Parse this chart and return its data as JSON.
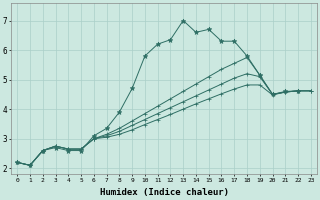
{
  "xlabel": "Humidex (Indice chaleur)",
  "bg_color": "#cce8e0",
  "grid_color": "#aacfc8",
  "line_color": "#2e6e64",
  "xlim": [
    -0.5,
    23.5
  ],
  "ylim": [
    1.8,
    7.6
  ],
  "yticks": [
    2,
    3,
    4,
    5,
    6,
    7
  ],
  "xticks": [
    0,
    1,
    2,
    3,
    4,
    5,
    6,
    7,
    8,
    9,
    10,
    11,
    12,
    13,
    14,
    15,
    16,
    17,
    18,
    19,
    20,
    21,
    22,
    23
  ],
  "series": [
    {
      "marker": "*",
      "x": [
        0,
        1,
        2,
        3,
        4,
        5,
        6,
        7,
        8,
        9,
        10,
        11,
        12,
        13,
        14,
        15,
        16,
        17,
        18,
        19,
        20,
        21,
        22
      ],
      "y": [
        2.2,
        2.1,
        2.6,
        2.7,
        2.6,
        2.6,
        3.1,
        3.35,
        3.9,
        4.7,
        5.8,
        6.2,
        6.35,
        7.0,
        6.6,
        6.7,
        6.3,
        6.3,
        5.8,
        5.15,
        4.5,
        4.6,
        4.62
      ]
    },
    {
      "marker": "+",
      "x": [
        0,
        1,
        2,
        3,
        4,
        5,
        6,
        7,
        8,
        9,
        10,
        11,
        12,
        13,
        14,
        15,
        16,
        17,
        18,
        19,
        20,
        21,
        22,
        23
      ],
      "y": [
        2.2,
        2.1,
        2.6,
        2.75,
        2.65,
        2.65,
        3.0,
        3.15,
        3.35,
        3.6,
        3.85,
        4.1,
        4.35,
        4.6,
        4.85,
        5.1,
        5.35,
        5.55,
        5.75,
        5.15,
        4.5,
        4.58,
        4.62,
        4.62
      ]
    },
    {
      "marker": "+",
      "x": [
        0,
        1,
        2,
        3,
        4,
        5,
        6,
        7,
        8,
        9,
        10,
        11,
        12,
        13,
        14,
        15,
        16,
        17,
        18,
        19,
        20,
        21,
        22,
        23
      ],
      "y": [
        2.2,
        2.1,
        2.6,
        2.75,
        2.65,
        2.65,
        3.0,
        3.1,
        3.25,
        3.45,
        3.65,
        3.85,
        4.05,
        4.25,
        4.45,
        4.65,
        4.85,
        5.05,
        5.2,
        5.1,
        4.5,
        4.58,
        4.62,
        4.62
      ]
    },
    {
      "marker": "+",
      "x": [
        0,
        1,
        2,
        3,
        4,
        5,
        6,
        7,
        8,
        9,
        10,
        11,
        12,
        13,
        14,
        15,
        16,
        17,
        18,
        19,
        20,
        21,
        22,
        23
      ],
      "y": [
        2.2,
        2.1,
        2.6,
        2.75,
        2.65,
        2.65,
        3.0,
        3.05,
        3.15,
        3.3,
        3.48,
        3.65,
        3.82,
        4.0,
        4.18,
        4.35,
        4.52,
        4.68,
        4.82,
        4.82,
        4.48,
        4.58,
        4.62,
        4.62
      ]
    }
  ]
}
